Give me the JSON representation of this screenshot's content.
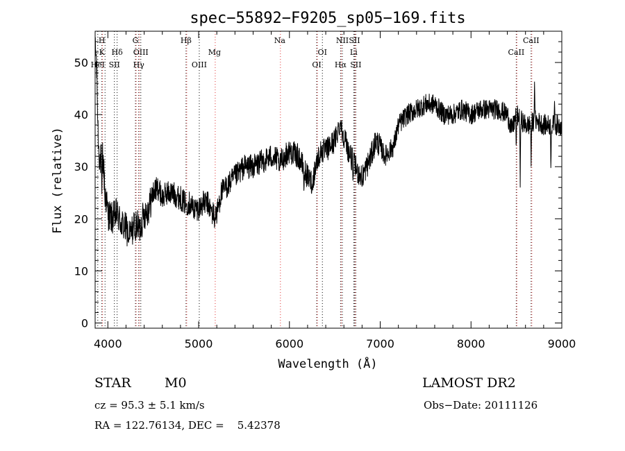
{
  "chart_data": {
    "type": "line",
    "title": "spec−55892−F9205_sp05−169.fits",
    "xlabel": "Wavelength (Å)",
    "ylabel": "Flux (relative)",
    "xlim": [
      3860,
      9000
    ],
    "ylim": [
      -1,
      56
    ],
    "xticks": [
      4000,
      5000,
      6000,
      7000,
      8000,
      9000
    ],
    "yticks": [
      0,
      10,
      20,
      30,
      40,
      50
    ],
    "grid": false,
    "series": [
      {
        "anchors": [
          [
            3870,
            52
          ],
          [
            3880,
            47
          ],
          [
            3890,
            38
          ],
          [
            3900,
            33
          ],
          [
            3920,
            31
          ],
          [
            3940,
            33
          ],
          [
            3960,
            28
          ],
          [
            3980,
            24
          ],
          [
            4000,
            21
          ],
          [
            4050,
            20
          ],
          [
            4100,
            21
          ],
          [
            4150,
            19
          ],
          [
            4200,
            18
          ],
          [
            4250,
            17
          ],
          [
            4300,
            19
          ],
          [
            4350,
            18
          ],
          [
            4400,
            21
          ],
          [
            4450,
            22
          ],
          [
            4500,
            25
          ],
          [
            4550,
            26
          ],
          [
            4600,
            24
          ],
          [
            4650,
            25
          ],
          [
            4700,
            25
          ],
          [
            4800,
            24
          ],
          [
            4850,
            23
          ],
          [
            4900,
            23
          ],
          [
            4950,
            22
          ],
          [
            5000,
            22
          ],
          [
            5050,
            23
          ],
          [
            5100,
            23
          ],
          [
            5150,
            21
          ],
          [
            5200,
            21
          ],
          [
            5250,
            25
          ],
          [
            5300,
            26
          ],
          [
            5400,
            28
          ],
          [
            5500,
            30
          ],
          [
            5600,
            30
          ],
          [
            5700,
            31
          ],
          [
            5800,
            32
          ],
          [
            5900,
            31
          ],
          [
            6000,
            33
          ],
          [
            6100,
            32
          ],
          [
            6150,
            30
          ],
          [
            6200,
            28
          ],
          [
            6250,
            27
          ],
          [
            6300,
            31
          ],
          [
            6350,
            33
          ],
          [
            6400,
            33
          ],
          [
            6450,
            34
          ],
          [
            6500,
            35
          ],
          [
            6550,
            38
          ],
          [
            6600,
            36
          ],
          [
            6650,
            33
          ],
          [
            6700,
            31
          ],
          [
            6750,
            29
          ],
          [
            6800,
            28
          ],
          [
            6850,
            30
          ],
          [
            6900,
            32
          ],
          [
            6950,
            35
          ],
          [
            7000,
            34
          ],
          [
            7050,
            32
          ],
          [
            7100,
            33
          ],
          [
            7150,
            34
          ],
          [
            7200,
            38
          ],
          [
            7300,
            40
          ],
          [
            7400,
            41
          ],
          [
            7500,
            42
          ],
          [
            7600,
            42
          ],
          [
            7700,
            40
          ],
          [
            7800,
            40
          ],
          [
            7900,
            41
          ],
          [
            8000,
            40
          ],
          [
            8100,
            41
          ],
          [
            8200,
            41
          ],
          [
            8300,
            41
          ],
          [
            8400,
            40
          ],
          [
            8450,
            37
          ],
          [
            8500,
            40
          ],
          [
            8550,
            39
          ],
          [
            8600,
            38
          ],
          [
            8650,
            38
          ],
          [
            8700,
            39
          ],
          [
            8800,
            38
          ],
          [
            8900,
            38
          ],
          [
            9000,
            38
          ]
        ],
        "dips": [
          [
            3934,
            24
          ],
          [
            3969,
            22
          ],
          [
            4228,
            15
          ],
          [
            4300,
            16
          ],
          [
            4861,
            23
          ],
          [
            5175,
            18
          ],
          [
            5890,
            29
          ],
          [
            6160,
            25
          ],
          [
            6250,
            26
          ],
          [
            6700,
            27
          ],
          [
            6800,
            26
          ],
          [
            8498,
            33
          ],
          [
            8542,
            26
          ],
          [
            8662,
            30
          ],
          [
            8880,
            29
          ]
        ],
        "peaks": [
          [
            6563,
            39
          ],
          [
            8700,
            47
          ],
          [
            8920,
            43
          ]
        ]
      }
    ],
    "annotations": {
      "row1": [
        {
          "x": 3934,
          "text": "H"
        },
        {
          "x": 4304,
          "text": "G"
        },
        {
          "x": 4861,
          "text": "Hβ"
        },
        {
          "x": 5893,
          "text": "Na"
        },
        {
          "x": 6583,
          "text": "NII"
        },
        {
          "x": 6717,
          "text": "SII"
        },
        {
          "x": 8662,
          "text": "CaII"
        }
      ],
      "row2": [
        {
          "x": 3934,
          "text": "K"
        },
        {
          "x": 4102,
          "text": "Hδ"
        },
        {
          "x": 4363,
          "text": "OIII"
        },
        {
          "x": 5175,
          "text": "Mg"
        },
        {
          "x": 6363,
          "text": "OI"
        },
        {
          "x": 6708,
          "text": "Li"
        },
        {
          "x": 8498,
          "text": "CaII"
        }
      ],
      "row3": [
        {
          "x": 3889,
          "text": "HeI"
        },
        {
          "x": 4072,
          "text": "SII"
        },
        {
          "x": 4340,
          "text": "Hγ"
        },
        {
          "x": 5007,
          "text": "OIII"
        },
        {
          "x": 6300,
          "text": "OI"
        },
        {
          "x": 6563,
          "text": "Hα"
        },
        {
          "x": 6731,
          "text": "SII"
        }
      ]
    },
    "line_markers": {
      "black": [
        3889,
        3934,
        3969,
        4072,
        4102,
        4304,
        4340,
        4363,
        4861,
        5007,
        6300,
        6363,
        6563,
        6583,
        6708,
        6717,
        6731,
        8498,
        8662
      ],
      "red": [
        3934,
        4304,
        4340,
        4861,
        5175,
        5893,
        6300,
        6563,
        6717,
        8498,
        8662
      ]
    },
    "colors": {
      "axis": "#000000",
      "spectrum": "#000000",
      "marker_black": "#000000",
      "marker_red": "#e03030"
    }
  },
  "info": {
    "object_class": "STAR",
    "subclass": "M0",
    "survey": "LAMOST DR2",
    "cz": "cz = 95.3 ± 5.1 km/s",
    "obs_date": "Obs−Date: 20111126",
    "coords": "RA = 122.76134, DEC =    5.42378"
  }
}
